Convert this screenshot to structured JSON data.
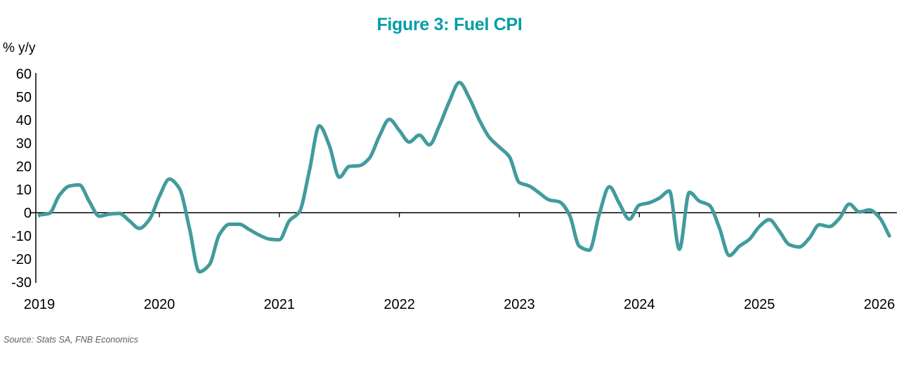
{
  "title": "Figure 3: Fuel CPI",
  "source_note": "Source: Stats SA, FNB Economics",
  "colors": {
    "title_teal": "#009EA6",
    "line_teal": "#429B9C",
    "axis_black": "#000000",
    "source_gray": "#5F5F5F"
  },
  "chart_data": {
    "type": "line",
    "title": "Figure 3: Fuel CPI",
    "unit_label": "% y/y",
    "frequency": "monthly",
    "x_start": {
      "year": 2019,
      "month": 1
    },
    "x_end": {
      "year": 2026,
      "month": 2
    },
    "x_tick_labels": [
      "2019",
      "2020",
      "2021",
      "2022",
      "2023",
      "2024",
      "2025",
      "2026"
    ],
    "y_ticks": [
      60,
      50,
      40,
      30,
      20,
      10,
      0,
      -10,
      -20,
      -30
    ],
    "ylim": [
      -30,
      60
    ],
    "grid": false,
    "legend": "none",
    "series": [
      {
        "name": "Fuel CPI",
        "color": "#429B9C",
        "values": [
          -1.0,
          -0.3,
          7.5,
          11.5,
          12.0,
          4.8,
          -1.5,
          -0.6,
          -0.3,
          -3.5,
          -6.8,
          -3.0,
          7.0,
          14.5,
          10.5,
          -6.5,
          -25.5,
          -22.5,
          -9.5,
          -5.0,
          -5.0,
          -7.3,
          -9.7,
          -11.4,
          -11.7,
          -3.5,
          0.3,
          18.0,
          37.5,
          29.0,
          15.3,
          20.0,
          20.3,
          23.5,
          33.0,
          40.3,
          35.5,
          30.5,
          33.5,
          29.3,
          37.5,
          48.0,
          56.2,
          49.5,
          40.0,
          32.5,
          28.3,
          24.2,
          13.0,
          11.5,
          8.5,
          5.5,
          4.7,
          -0.8,
          -14.5,
          -16.2,
          -0.5,
          11.2,
          4.0,
          -2.8,
          3.3,
          4.3,
          6.3,
          9.4,
          -15.8,
          8.8,
          5.0,
          3.2,
          -6.5,
          -18.5,
          -14.5,
          -11.5,
          -6.0,
          -3.0,
          -8.0,
          -13.8,
          -14.8,
          -11.0,
          -5.2,
          -6.0,
          -2.5,
          3.7,
          0.3,
          1.2,
          -2.0,
          -10.0
        ]
      }
    ]
  }
}
